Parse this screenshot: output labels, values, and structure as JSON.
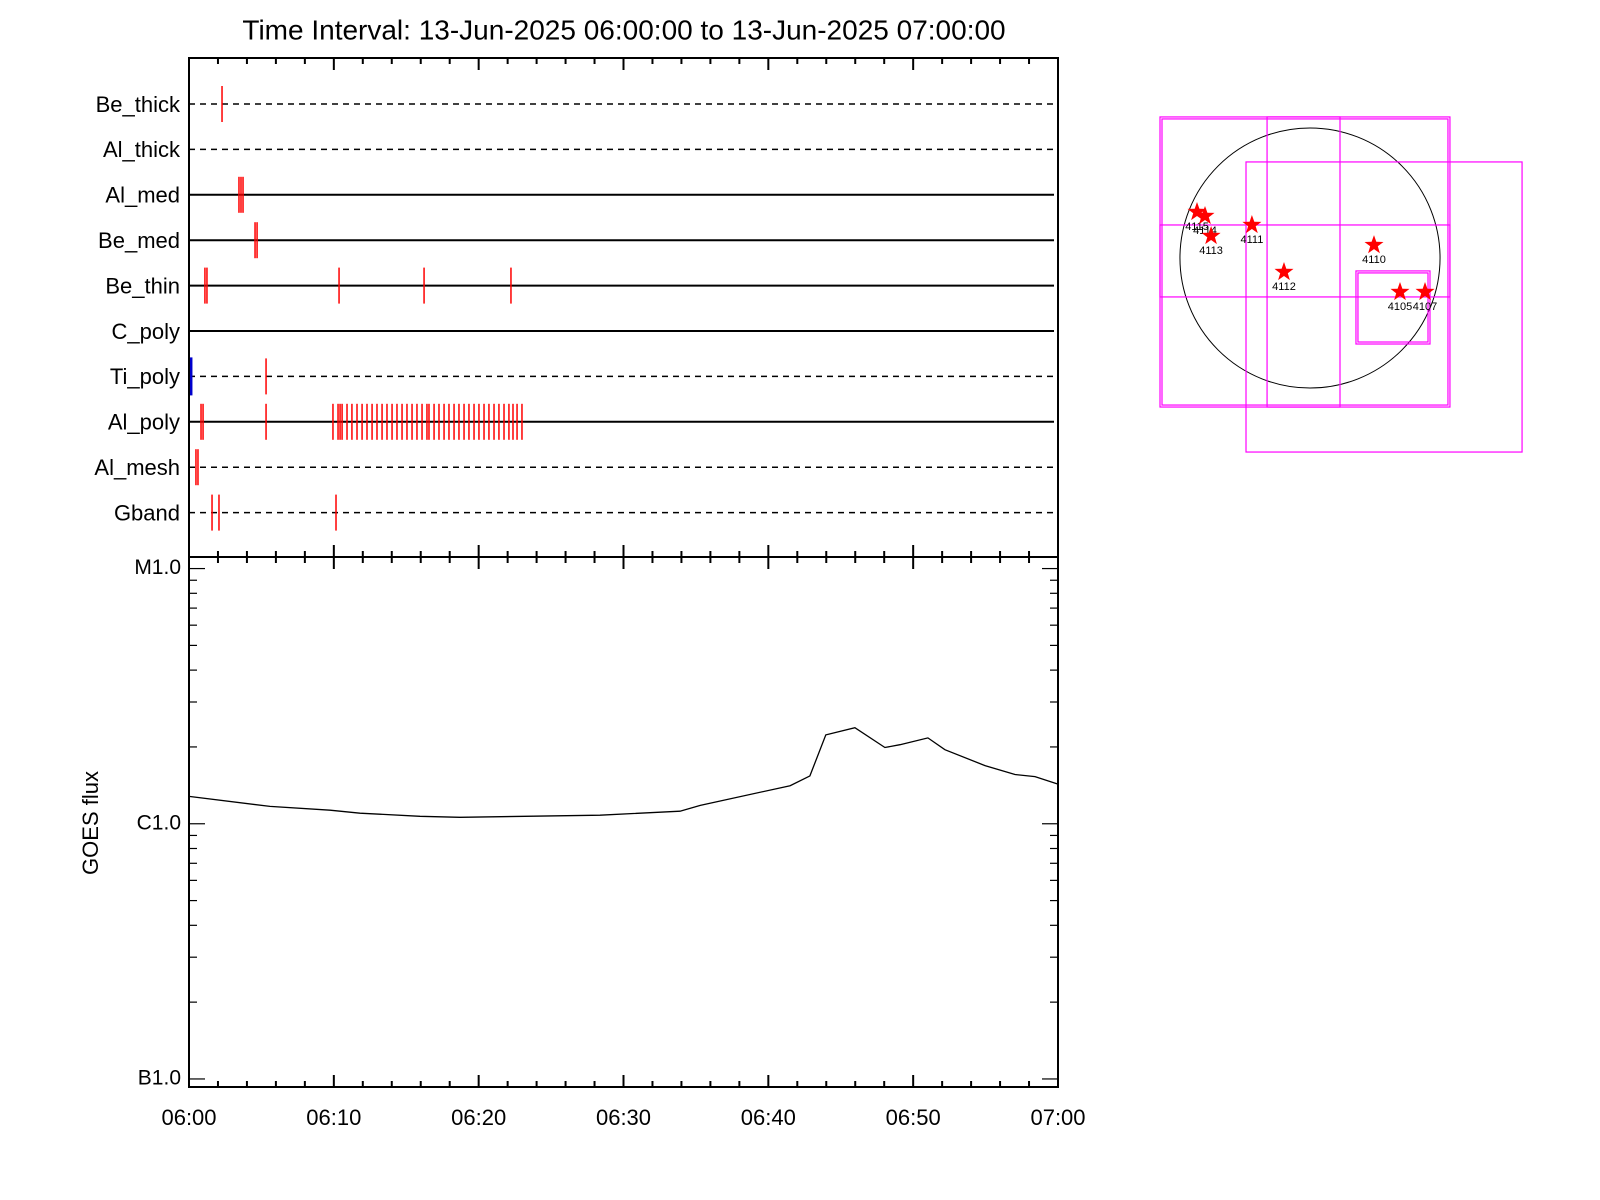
{
  "chart_data": [
    {
      "type": "timeline",
      "title": "Time Interval: 13-Jun-2025 06:00:00 to 13-Jun-2025 07:00:00",
      "xlim": [
        0,
        60
      ],
      "color": "#ff0000",
      "rows": [
        {
          "name": "Be_thick",
          "style": "dashed",
          "events": [
            2.28
          ]
        },
        {
          "name": "Al_thick",
          "style": "dashed",
          "events": []
        },
        {
          "name": "Al_med",
          "style": "solid",
          "events": [
            3.45,
            3.59,
            3.73
          ]
        },
        {
          "name": "Be_med",
          "style": "solid",
          "events": [
            4.56,
            4.7
          ]
        },
        {
          "name": "Be_thin",
          "style": "solid",
          "events": [
            1.1,
            1.24,
            10.36,
            16.23,
            22.23
          ]
        },
        {
          "name": "C_poly",
          "style": "solid",
          "events": []
        },
        {
          "name": "Ti_poly",
          "style": "dashed",
          "events": [
            5.32
          ],
          "special": [
            0.1
          ],
          "special_color": "#0000cc"
        },
        {
          "name": "Al_poly",
          "style": "solid",
          "events": [
            0.83,
            0.97,
            5.32,
            9.94,
            10.29,
            10.43,
            10.57,
            10.91,
            11.25,
            11.6,
            11.95,
            12.29,
            12.64,
            12.98,
            13.33,
            13.67,
            14.02,
            14.36,
            14.71,
            15.05,
            15.4,
            15.74,
            16.09,
            16.43,
            16.57,
            16.92,
            17.26,
            17.61,
            17.95,
            18.3,
            18.64,
            18.99,
            19.33,
            19.68,
            20.02,
            20.37,
            20.71,
            21.06,
            21.4,
            21.75,
            22.09,
            22.37,
            22.65,
            22.99
          ]
        },
        {
          "name": "Al_mesh",
          "style": "dashed",
          "events": [
            0.48,
            0.62
          ]
        },
        {
          "name": "Gband",
          "style": "dashed",
          "events": [
            1.59,
            2.07,
            10.15
          ]
        }
      ]
    },
    {
      "type": "line",
      "ylabel": "GOES flux",
      "log_y": true,
      "xlim": [
        0,
        60
      ],
      "xticks": [
        {
          "value": 0,
          "label": "06:00"
        },
        {
          "value": 10,
          "label": "06:10"
        },
        {
          "value": 20,
          "label": "06:20"
        },
        {
          "value": 30,
          "label": "06:30"
        },
        {
          "value": 40,
          "label": "06:40"
        },
        {
          "value": 50,
          "label": "06:50"
        },
        {
          "value": 60,
          "label": "07:00"
        }
      ],
      "xminorticks": [
        2,
        4,
        6,
        8,
        12,
        14,
        16,
        18,
        22,
        24,
        26,
        28,
        32,
        34,
        36,
        38,
        42,
        44,
        46,
        48,
        52,
        54,
        56,
        58
      ],
      "ylim": [
        9.3e-08,
        1.11e-05
      ],
      "yticks": [
        {
          "value": 1e-07,
          "label": "B1.0"
        },
        {
          "value": 1e-06,
          "label": "C1.0"
        },
        {
          "value": 1e-05,
          "label": "M1.0"
        }
      ],
      "yminorticks": [
        2e-07,
        3e-07,
        4e-07,
        5e-07,
        6e-07,
        7e-07,
        8e-07,
        9e-07,
        2e-06,
        3e-06,
        4e-06,
        5e-06,
        6e-06,
        7e-06,
        8e-06,
        9e-06
      ],
      "color": "#000000",
      "x": [
        0,
        5.59,
        9.74,
        11.81,
        15.95,
        18.71,
        28.38,
        33.9,
        35.3,
        41.5,
        42.87,
        43.97,
        45.98,
        48.05,
        49.09,
        51.02,
        52.19,
        54.96,
        57.03,
        58.41,
        60
      ],
      "values": [
        1.28e-06,
        1.17e-06,
        1.13e-06,
        1.1e-06,
        1.07e-06,
        1.06e-06,
        1.08e-06,
        1.12e-06,
        1.18e-06,
        1.41e-06,
        1.54e-06,
        2.23e-06,
        2.38e-06,
        1.99e-06,
        2.04e-06,
        2.17e-06,
        1.95e-06,
        1.69e-06,
        1.56e-06,
        1.53e-06,
        1.43e-06
      ]
    },
    {
      "type": "map",
      "xlim": [
        -1090,
        1090
      ],
      "ylim": [
        -1090,
        1090
      ],
      "disk_radius": 945,
      "box_color": "#ff00ff",
      "star_color": "#ff0000",
      "boxes": [
        {
          "x": [
            -1090,
            1017
          ],
          "y": [
            -1083,
            1025
          ],
          "double": true
        },
        {
          "x": [
            -465,
            1541
          ],
          "y": [
            -1410,
            698
          ],
          "double": false
        },
        {
          "x": [
            -312,
            218
          ],
          "y": [
            -1083,
            1025
          ],
          "double": false
        },
        {
          "x": [
            -1090,
            1017
          ],
          "y": [
            -283,
            240
          ],
          "double": false
        },
        {
          "x": [
            334,
            872
          ],
          "y": [
            -625,
            -94
          ],
          "double": true
        }
      ],
      "regions": [
        {
          "label": "4115",
          "x": -821,
          "y": 334
        },
        {
          "label": "4114",
          "x": -763,
          "y": 305
        },
        {
          "label": "4113",
          "x": -719,
          "y": 160
        },
        {
          "label": "4111",
          "x": -422,
          "y": 240
        },
        {
          "label": "4112",
          "x": -189,
          "y": -102
        },
        {
          "label": "4110",
          "x": 465,
          "y": 94
        },
        {
          "label": "4105",
          "x": 654,
          "y": -247
        },
        {
          "label": "4107",
          "x": 836,
          "y": -247
        }
      ]
    }
  ]
}
